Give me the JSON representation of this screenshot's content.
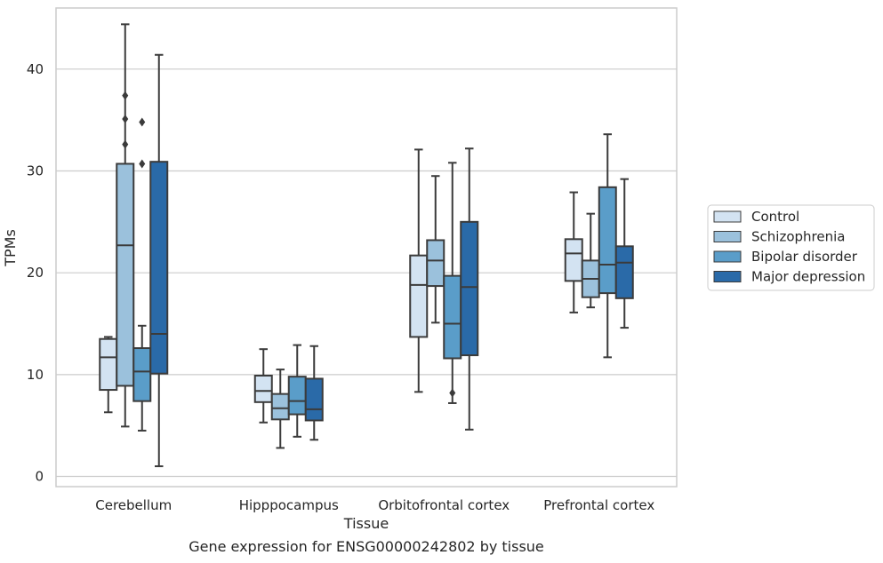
{
  "chart_data": {
    "type": "box",
    "xlabel": "Tissue",
    "ylabel": "TPMs",
    "caption": "Gene expression for ENSG00000242802 by tissue",
    "ylim": [
      -1,
      46
    ],
    "yticks": [
      "0",
      "10",
      "20",
      "30",
      "40"
    ],
    "ytick_values": [
      0,
      10,
      20,
      30,
      40
    ],
    "grid": "horizontal",
    "legend_placement": "right",
    "categories": [
      "Cerebellum",
      "Hipppocampus",
      "Orbitofrontal cortex",
      "Prefrontal cortex"
    ],
    "series": [
      {
        "name": "Control",
        "color": "#d3e3f2",
        "boxes": [
          {
            "whislo": 6.3,
            "q1": 8.5,
            "med": 11.7,
            "q3": 13.5,
            "whishi": 13.7,
            "fliers": []
          },
          {
            "whislo": 5.3,
            "q1": 7.3,
            "med": 8.4,
            "q3": 9.9,
            "whishi": 12.5,
            "fliers": []
          },
          {
            "whislo": 8.3,
            "q1": 13.7,
            "med": 18.8,
            "q3": 21.7,
            "whishi": 32.1,
            "fliers": []
          },
          {
            "whislo": 16.1,
            "q1": 19.2,
            "med": 21.9,
            "q3": 23.3,
            "whishi": 27.9,
            "fliers": []
          }
        ]
      },
      {
        "name": "Schizophrenia",
        "color": "#9bc1dc",
        "boxes": [
          {
            "whislo": 4.9,
            "q1": 8.9,
            "med": 22.7,
            "q3": 30.7,
            "whishi": 44.4,
            "fliers": [
              32.6,
              35.1,
              37.4
            ]
          },
          {
            "whislo": 2.8,
            "q1": 5.6,
            "med": 6.7,
            "q3": 8.1,
            "whishi": 10.5,
            "fliers": []
          },
          {
            "whislo": 15.1,
            "q1": 18.7,
            "med": 21.2,
            "q3": 23.2,
            "whishi": 29.5,
            "fliers": []
          },
          {
            "whislo": 16.6,
            "q1": 17.6,
            "med": 19.4,
            "q3": 21.2,
            "whishi": 25.8,
            "fliers": []
          }
        ]
      },
      {
        "name": "Bipolar disorder",
        "color": "#5a9dc9",
        "boxes": [
          {
            "whislo": 4.5,
            "q1": 7.4,
            "med": 10.3,
            "q3": 12.6,
            "whishi": 14.8,
            "fliers": [
              30.7,
              34.8
            ]
          },
          {
            "whislo": 3.9,
            "q1": 6.1,
            "med": 7.4,
            "q3": 9.8,
            "whishi": 12.9,
            "fliers": []
          },
          {
            "whislo": 7.2,
            "q1": 11.6,
            "med": 15.0,
            "q3": 19.7,
            "whishi": 30.8,
            "fliers": [
              8.2
            ]
          },
          {
            "whislo": 11.7,
            "q1": 18.0,
            "med": 20.8,
            "q3": 28.4,
            "whishi": 33.6,
            "fliers": []
          }
        ]
      },
      {
        "name": "Major depression",
        "color": "#2a6aa8",
        "boxes": [
          {
            "whislo": 1.0,
            "q1": 10.1,
            "med": 14.0,
            "q3": 30.9,
            "whishi": 41.4,
            "fliers": []
          },
          {
            "whislo": 3.6,
            "q1": 5.5,
            "med": 6.6,
            "q3": 9.6,
            "whishi": 12.8,
            "fliers": []
          },
          {
            "whislo": 4.6,
            "q1": 11.9,
            "med": 18.6,
            "q3": 25.0,
            "whishi": 32.2,
            "fliers": []
          },
          {
            "whislo": 14.6,
            "q1": 17.5,
            "med": 21.0,
            "q3": 22.6,
            "whishi": 29.2,
            "fliers": []
          }
        ]
      }
    ]
  }
}
